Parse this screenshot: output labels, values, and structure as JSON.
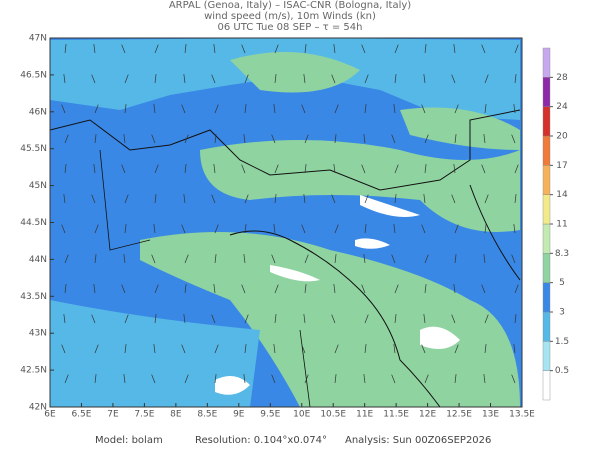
{
  "header": {
    "line1": "ARPAL (Genoa, Italy)  –  ISAC-CNR (Bologna, Italy)",
    "line2": "wind speed (m/s), 10m Winds (kn)",
    "line3": "06 UTC Tue 08 SEP  –  τ = 54h"
  },
  "map": {
    "lat_labels": [
      "47N",
      "46.5N",
      "46N",
      "45.5N",
      "45N",
      "44.5N",
      "44N",
      "43.5N",
      "43N",
      "42.5N",
      "42N"
    ],
    "lon_labels": [
      "6E",
      "6.5E",
      "7E",
      "7.5E",
      "8E",
      "8.5E",
      "9E",
      "9.5E",
      "10E",
      "10.5E",
      "11E",
      "11.5E",
      "12E",
      "12.5E",
      "13E",
      "13.5E"
    ]
  },
  "colorbar": {
    "levels": [
      0.5,
      1.5,
      3,
      5,
      8.3,
      11,
      14,
      17,
      20,
      24,
      28
    ],
    "colors": [
      "#ffffff",
      "#a6e4f2",
      "#56b8e6",
      "#3a88e6",
      "#8fd3a0",
      "#c3eab0",
      "#f2e98a",
      "#f5b25a",
      "#ef7a3a",
      "#d6302a",
      "#8e2aa8",
      "#c7a8ee"
    ]
  },
  "footer": {
    "model": "Model: bolam",
    "resolution": "Resolution: 0.104°x0.074°",
    "analysis": "Analysis: Sun 00Z06SEP2026"
  }
}
